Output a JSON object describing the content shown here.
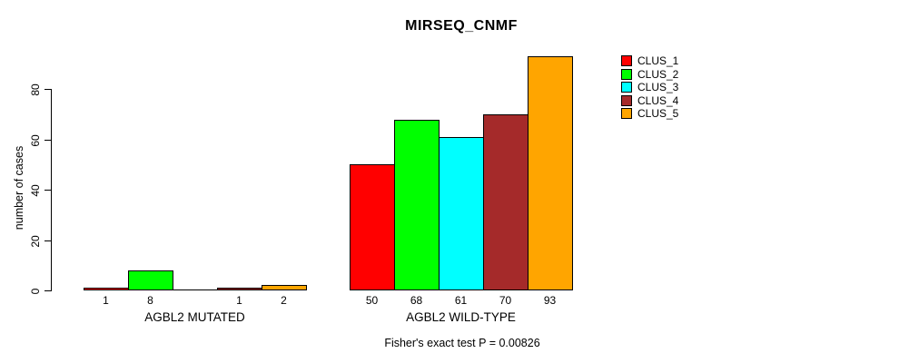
{
  "title": "MIRSEQ_CNMF",
  "ylabel": "number of cases",
  "annotation": "Fisher's exact test P = 0.00826",
  "legend": {
    "items": [
      {
        "label": "CLUS_1",
        "color": "#FF0000"
      },
      {
        "label": "CLUS_2",
        "color": "#00FF00"
      },
      {
        "label": "CLUS_3",
        "color": "#00FFFF"
      },
      {
        "label": "CLUS_4",
        "color": "#A52A2A"
      },
      {
        "label": "CLUS_5",
        "color": "#FFA500"
      }
    ]
  },
  "chart_data": {
    "type": "bar",
    "title": "MIRSEQ_CNMF",
    "ylabel": "number of cases",
    "xlabel": "",
    "annotation": "Fisher's exact test P = 0.00826",
    "grouped": true,
    "legend_position": "right",
    "grid": false,
    "ylim": [
      0,
      93
    ],
    "yticks": [
      0,
      20,
      40,
      60,
      80
    ],
    "series_names": [
      "CLUS_1",
      "CLUS_2",
      "CLUS_3",
      "CLUS_4",
      "CLUS_5"
    ],
    "series_colors": [
      "#FF0000",
      "#00FF00",
      "#00FFFF",
      "#A52A2A",
      "#FFA500"
    ],
    "groups": [
      {
        "label": "AGBL2 MUTATED",
        "values": [
          1,
          8,
          0,
          1,
          2
        ],
        "bar_labels": [
          "1",
          "8",
          "",
          "1",
          "2"
        ]
      },
      {
        "label": "AGBL2 WILD-TYPE",
        "values": [
          50,
          68,
          61,
          70,
          93
        ],
        "bar_labels": [
          "50",
          "68",
          "61",
          "70",
          "93"
        ]
      }
    ]
  }
}
